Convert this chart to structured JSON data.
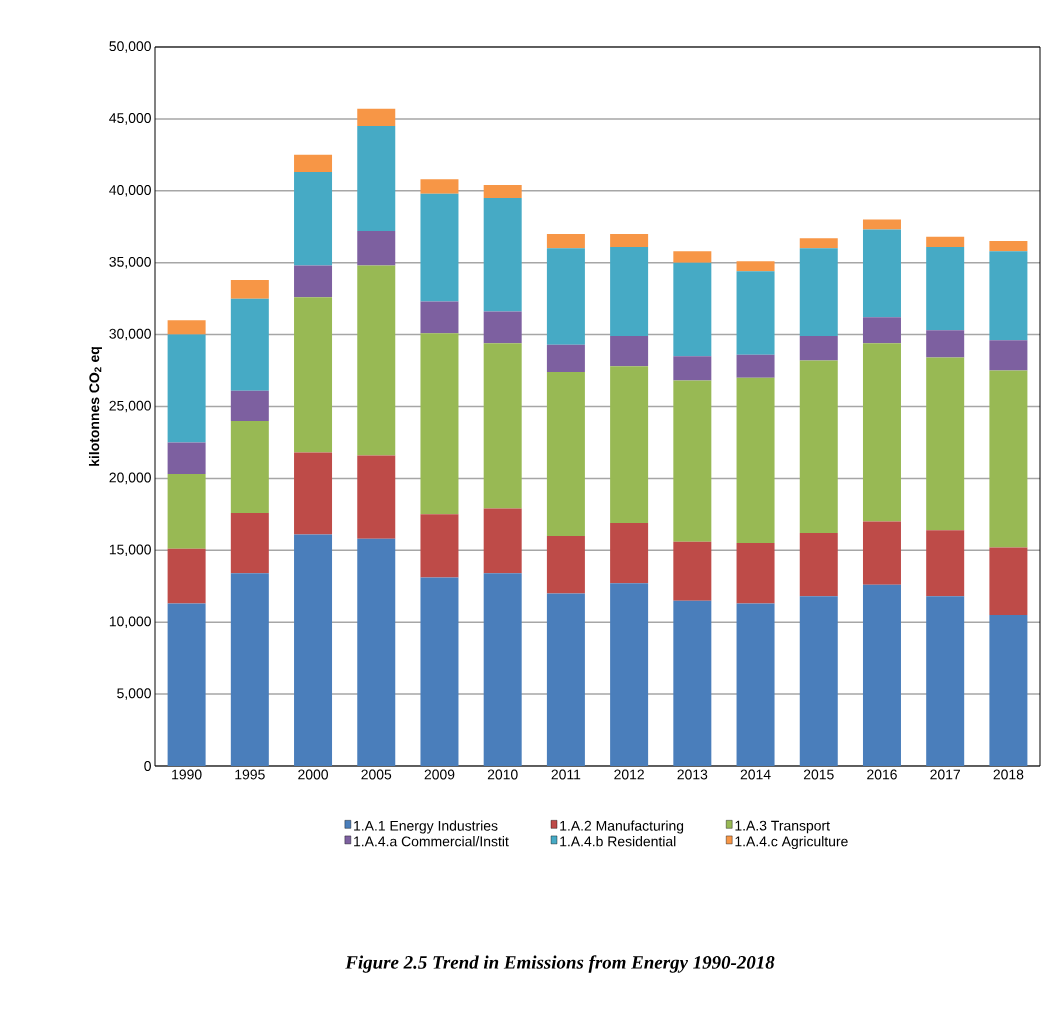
{
  "chart_data": {
    "type": "bar",
    "stacked": true,
    "title": "Figure 2.5 Trend in Emissions from Energy 1990-2018",
    "ylabel": "kilotonnes CO$_{2}$ eq",
    "categories": [
      "1990",
      "1995",
      "2000",
      "2005",
      "2009",
      "2010",
      "2011",
      "2012",
      "2013",
      "2014",
      "2015",
      "2016",
      "2017",
      "2018"
    ],
    "series": [
      {
        "name": "1.A.1 Energy Industries",
        "color": "#4a7ebb",
        "values": [
          11300,
          13400,
          16100,
          15800,
          13100,
          13400,
          12000,
          12700,
          11500,
          11300,
          11800,
          12600,
          11800,
          10500
        ]
      },
      {
        "name": "1.A.2 Manufacturing",
        "color": "#be4b48",
        "values": [
          3800,
          4200,
          5700,
          5800,
          4400,
          4500,
          4000,
          4200,
          4100,
          4200,
          4400,
          4400,
          4600,
          4700
        ]
      },
      {
        "name": "1.A.3 Transport",
        "color": "#98b954",
        "values": [
          5200,
          6400,
          10800,
          13200,
          12600,
          11500,
          11400,
          10900,
          11200,
          11500,
          12000,
          12400,
          12000,
          12300
        ]
      },
      {
        "name": "1.A.4.a Commercial/Instit",
        "color": "#7d60a0",
        "values": [
          2200,
          2100,
          2200,
          2400,
          2200,
          2200,
          1900,
          2100,
          1700,
          1600,
          1700,
          1800,
          1900,
          2100
        ]
      },
      {
        "name": "1.A.4.b Residential",
        "color": "#46aac5",
        "values": [
          7500,
          6400,
          6500,
          7300,
          7500,
          7900,
          6700,
          6200,
          6500,
          5800,
          6100,
          6100,
          5800,
          6200
        ]
      },
      {
        "name": "1.A.4.c Agriculture",
        "color": "#f79646",
        "values": [
          1000,
          1300,
          1200,
          1200,
          1000,
          900,
          1000,
          900,
          800,
          700,
          700,
          700,
          700,
          700
        ]
      }
    ],
    "ylim": [
      0,
      50000
    ],
    "yticks": [
      {
        "value": 0,
        "label": "0"
      },
      {
        "value": 5000,
        "label": "5,000"
      },
      {
        "value": 10000,
        "label": "10,000"
      },
      {
        "value": 15000,
        "label": "15,000"
      },
      {
        "value": 20000,
        "label": "20,000"
      },
      {
        "value": 25000,
        "label": "25,000"
      },
      {
        "value": 30000,
        "label": "30,000"
      },
      {
        "value": 35000,
        "label": "35,000"
      },
      {
        "value": 40000,
        "label": "40,000"
      },
      {
        "value": 45000,
        "label": "45,000"
      },
      {
        "value": 50000,
        "label": "50,000"
      }
    ],
    "grid": "y",
    "legend": "bottom"
  }
}
